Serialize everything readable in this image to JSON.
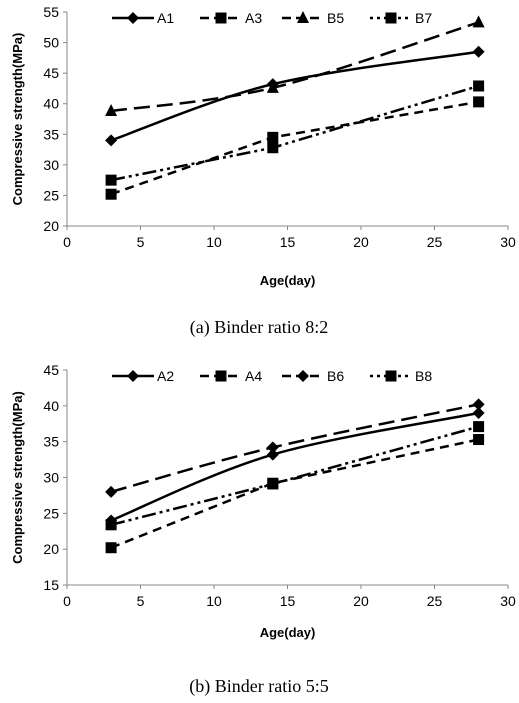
{
  "chart_data": [
    {
      "type": "line",
      "caption": "(a) Binder ratio 8:2",
      "xlabel": "Age(day)",
      "ylabel": "Compressive strength(MPa)",
      "xlim": [
        0,
        30
      ],
      "ylim": [
        20,
        55
      ],
      "xticks": [
        0,
        5,
        10,
        15,
        20,
        25,
        30
      ],
      "yticks": [
        20,
        25,
        30,
        35,
        40,
        45,
        50,
        55
      ],
      "grid": false,
      "legend_position": "top",
      "series": [
        {
          "name": "A1",
          "x": [
            3,
            14,
            28
          ],
          "values": [
            34.0,
            43.2,
            48.5
          ],
          "marker": "diamond",
          "dash": "solid"
        },
        {
          "name": "A3",
          "x": [
            3,
            14,
            28
          ],
          "values": [
            25.2,
            34.5,
            40.3
          ],
          "marker": "square",
          "dash": "dash"
        },
        {
          "name": "B5",
          "x": [
            3,
            14,
            28
          ],
          "values": [
            38.8,
            42.6,
            53.3
          ],
          "marker": "triangle",
          "dash": "longdash"
        },
        {
          "name": "B7",
          "x": [
            3,
            14,
            28
          ],
          "values": [
            27.5,
            32.8,
            42.9
          ],
          "marker": "square",
          "dash": "dashdotdot"
        }
      ]
    },
    {
      "type": "line",
      "caption": "(b) Binder ratio 5:5",
      "xlabel": "Age(day)",
      "ylabel": "Compressive strength(MPa)",
      "xlim": [
        0,
        30
      ],
      "ylim": [
        15,
        45
      ],
      "xticks": [
        0,
        5,
        10,
        15,
        20,
        25,
        30
      ],
      "yticks": [
        15,
        20,
        25,
        30,
        35,
        40,
        45
      ],
      "grid": false,
      "legend_position": "top",
      "series": [
        {
          "name": "A2",
          "x": [
            3,
            14,
            28
          ],
          "values": [
            24.0,
            33.2,
            39.0
          ],
          "marker": "diamond",
          "dash": "solid"
        },
        {
          "name": "A4",
          "x": [
            3,
            14,
            28
          ],
          "values": [
            20.2,
            29.2,
            35.3
          ],
          "marker": "square",
          "dash": "dash"
        },
        {
          "name": "B6",
          "x": [
            3,
            14,
            28
          ],
          "values": [
            28.0,
            34.2,
            40.2
          ],
          "marker": "diamond",
          "dash": "longdash"
        },
        {
          "name": "B8",
          "x": [
            3,
            14,
            28
          ],
          "values": [
            23.4,
            29.1,
            37.1
          ],
          "marker": "square",
          "dash": "dashdotdot"
        }
      ]
    }
  ]
}
